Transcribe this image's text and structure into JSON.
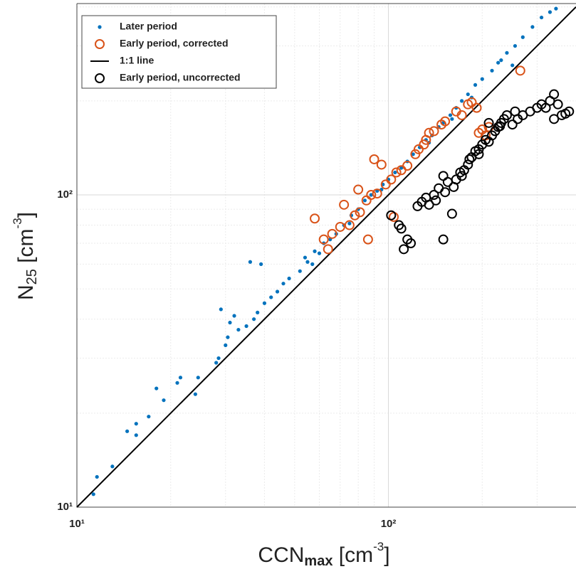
{
  "chart_data": {
    "type": "scatter",
    "log_x": true,
    "log_y": true,
    "grid": true,
    "legend": "top-left",
    "xlabel": [
      "CCN",
      "max",
      " [cm",
      "-3",
      "]"
    ],
    "ylabel": [
      "N",
      "25",
      " [cm",
      "-3",
      "]"
    ],
    "xlim": [
      10,
      400
    ],
    "ylim": [
      10,
      410
    ],
    "xticks": [
      {
        "value": 10,
        "label": "10¹"
      },
      {
        "value": 100,
        "label": "10²"
      }
    ],
    "yticks": [
      {
        "value": 10,
        "label": "10¹"
      },
      {
        "value": 100,
        "label": "10²"
      }
    ],
    "series": [
      {
        "name": "Later period",
        "marker": "dot",
        "color": "#0072bd",
        "x": [
          11.3,
          11.6,
          13,
          14.5,
          15.5,
          15.5,
          17,
          18,
          19,
          21,
          21.5,
          24,
          24.5,
          28,
          28.5,
          29,
          30,
          30.5,
          31,
          32,
          33,
          35,
          36,
          37,
          38,
          39,
          40,
          42,
          44,
          46,
          48,
          52,
          55,
          57,
          60,
          65,
          68,
          72,
          76,
          80,
          84,
          88,
          92,
          96,
          100,
          105,
          110,
          115,
          120,
          126,
          132,
          138,
          145,
          150,
          158,
          165,
          172,
          180,
          190,
          200,
          215,
          225,
          240,
          255,
          270,
          290,
          310,
          330,
          345,
          54,
          58,
          62,
          75,
          95,
          135,
          160,
          185,
          230,
          250
        ],
        "values": [
          11,
          12.5,
          13.5,
          17.5,
          17,
          18.5,
          19.5,
          24,
          22,
          25,
          26,
          23,
          26,
          29,
          30,
          43,
          33,
          35,
          39,
          41,
          37,
          38,
          61,
          40,
          42,
          60,
          45,
          47,
          49,
          52,
          54,
          57,
          61,
          60,
          65,
          72,
          75,
          80,
          86,
          90,
          96,
          100,
          103,
          108,
          112,
          118,
          122,
          128,
          135,
          142,
          150,
          155,
          165,
          170,
          180,
          190,
          200,
          210,
          225,
          235,
          250,
          265,
          285,
          300,
          320,
          345,
          370,
          385,
          395,
          63,
          66,
          70,
          81,
          104,
          147,
          175,
          205,
          270,
          260
        ]
      },
      {
        "name": "Early period, corrected",
        "marker": "circle",
        "color": "#d95319",
        "x": [
          58,
          62,
          64,
          66,
          70,
          72,
          75,
          78,
          80,
          81,
          85,
          86,
          88,
          90,
          92,
          95,
          98,
          102,
          104,
          106,
          110,
          115,
          122,
          125,
          130,
          132,
          135,
          140,
          148,
          152,
          165,
          172,
          180,
          185,
          192,
          195,
          200,
          205,
          210,
          265
        ],
        "values": [
          84,
          72,
          67,
          75,
          79,
          93,
          80,
          86,
          104,
          88,
          96,
          72,
          100,
          130,
          101,
          125,
          108,
          112,
          85,
          118,
          120,
          124,
          135,
          140,
          145,
          150,
          158,
          160,
          168,
          172,
          185,
          180,
          195,
          198,
          190,
          158,
          162,
          155,
          165,
          250
        ]
      },
      {
        "name": "1:1 line",
        "marker": "line",
        "color": "#000000",
        "x": [
          10,
          400
        ],
        "values": [
          10,
          400
        ]
      },
      {
        "name": "Early period, uncorrected",
        "marker": "circle",
        "color": "#000000",
        "x": [
          102,
          108,
          110,
          112,
          115,
          118,
          124,
          128,
          132,
          135,
          140,
          142,
          145,
          150,
          152,
          155,
          160,
          162,
          165,
          170,
          172,
          175,
          180,
          182,
          185,
          190,
          195,
          200,
          205,
          210,
          215,
          220,
          225,
          230,
          235,
          240,
          260,
          270,
          285,
          300,
          310,
          320,
          330,
          340,
          350,
          360,
          370,
          380,
          210,
          250,
          150,
          195,
          228,
          255,
          340
        ],
        "values": [
          86,
          80,
          78,
          67,
          72,
          70,
          92,
          95,
          98,
          93,
          100,
          96,
          105,
          72,
          102,
          110,
          87,
          106,
          112,
          118,
          115,
          120,
          125,
          130,
          132,
          138,
          140,
          145,
          150,
          148,
          155,
          160,
          165,
          170,
          175,
          180,
          175,
          180,
          185,
          190,
          195,
          190,
          200,
          210,
          195,
          180,
          182,
          185,
          170,
          168,
          115,
          135,
          166,
          185,
          175
        ]
      }
    ]
  }
}
